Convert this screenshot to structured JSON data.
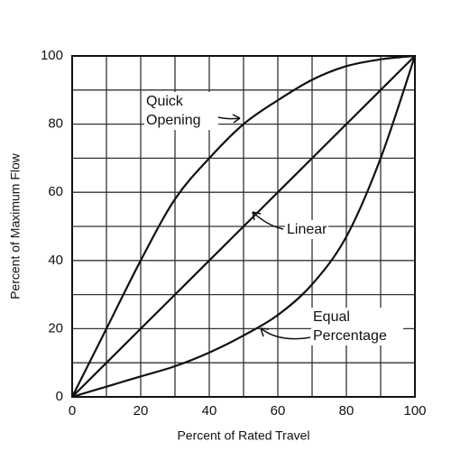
{
  "chart_data": {
    "type": "line",
    "x_label": "Percent of Rated Travel",
    "y_label": "Percent of Maximum Flow",
    "x": [
      0,
      10,
      20,
      30,
      40,
      50,
      60,
      70,
      80,
      90,
      100
    ],
    "series": [
      {
        "name": "Quick Opening",
        "color": "#111111",
        "values": [
          0,
          20,
          40,
          58,
          70,
          80,
          87,
          93,
          97,
          99,
          100
        ]
      },
      {
        "name": "Linear",
        "color": "#111111",
        "values": [
          0,
          10,
          20,
          30,
          40,
          50,
          60,
          70,
          80,
          90,
          100
        ]
      },
      {
        "name": "Equal Percentage",
        "color": "#111111",
        "values": [
          0,
          3,
          6,
          9,
          13,
          18,
          24,
          33,
          47,
          70,
          100
        ]
      }
    ],
    "xlim": [
      0,
      100
    ],
    "ylim": [
      0,
      100
    ],
    "xticks": [
      0,
      20,
      40,
      60,
      80,
      100
    ],
    "yticks": [
      0,
      20,
      40,
      60,
      80,
      100
    ],
    "xminor": [
      10,
      30,
      50,
      70,
      90
    ],
    "yminor": [
      10,
      30,
      50,
      70,
      90
    ],
    "grid": true
  }
}
